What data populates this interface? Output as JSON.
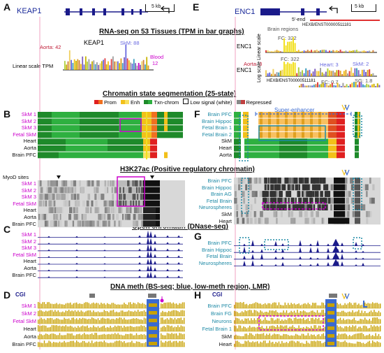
{
  "panels": {
    "a": "A",
    "b": "B",
    "c": "C",
    "d": "D",
    "e": "E",
    "f": "F",
    "g": "G",
    "h": "H"
  },
  "genes": {
    "left": "KEAP1",
    "right": "ENC1"
  },
  "scalebar": "5 kb",
  "titles": {
    "rnaseq": "RNA-seq on 53 Tissues (TPM in bar graphs)",
    "chromatin": "Chromatin state segmentation (25-state)",
    "h3k27ac": "H3K27ac (Positive regulatory chromatin)",
    "dnase": "Open chromatin (DNase-seq)",
    "dnameth": "DNA meth (BS-seq; blue, low-meth region, LMR)"
  },
  "legend": {
    "prom": "Prom",
    "enh": "Enh",
    "txn": "Txn-chrom",
    "low": "Low signal (white)",
    "rep": "Repressed"
  },
  "rna_left": {
    "gene": "KEAP1",
    "aorta": "Aorta: 42",
    "skm": "SkM: 88",
    "blood": "Blood",
    "blood_val": "12",
    "ylabel": "Linear scale TPM"
  },
  "rna_right": {
    "five_end": "5'-end",
    "transcript": "HEXB/ENST00000511181",
    "brain_regions": "Brain regions",
    "fc1": "FC: 322",
    "linear": "Linear scale",
    "log": "Log scale",
    "gene": "ENC1",
    "aorta": "Aorta: 3",
    "fc2": "FC: 322",
    "heart": "Heart: 3",
    "skm": "SkM: 2",
    "transcript2": "HEXB/ENST00000511181",
    "fc3": "FC: 0.7",
    "sg": "SG: 1.8"
  },
  "superenhancer": "Super-enhancer",
  "myod": "MyoD sites",
  "cgi": "CGI",
  "tracks": {
    "b": [
      "SkM 1",
      "SkM 2",
      "SkM 3",
      "Fetal SkM",
      "Heart",
      "Aorta",
      "Brain PFC"
    ],
    "f": [
      "Brain PFC",
      "Brain Hippoc",
      "Fetal Brain 1",
      "Fetal Brain 2",
      "SkM",
      "Heart",
      "Aorta"
    ],
    "bh": [
      "SkM 1",
      "SkM 2",
      "SkM 3",
      "Fetal SkM",
      "Heart",
      "Aorta",
      "Brain PFC"
    ],
    "fh": [
      "Brain PFC",
      "Brain Hippoc",
      "Brain AG",
      "Fetal Brain",
      "Neurospheres",
      "SkM",
      "Heart"
    ],
    "c": [
      "SkM 1",
      "SkM 2",
      "SkM 3",
      "Fetal SkM",
      "Heart",
      "Aorta",
      "Brain PFC"
    ],
    "g": [
      "Brain PFC",
      "Brain Hippoc",
      "Fetal Brain",
      "Neurospheres"
    ],
    "d": [
      "SkM 1",
      "SkM 2",
      "Fetal SkM",
      "Heart",
      "Aorta",
      "Brain PFC"
    ],
    "h": [
      "Brain PFC",
      "Brain FG",
      "Neurons",
      "Fetal Brain 1",
      "SkM",
      "Heart"
    ]
  },
  "colors": {
    "prom": "#e02020",
    "enh": "#f2c01a",
    "txn": "#1e8a2a",
    "rep": "#d05050",
    "dnase": "#1a1a8a",
    "meth": "#c8a100",
    "lmr": "#3a6ad0",
    "magenta": "#cc00cc",
    "teal": "#1f8aa6"
  }
}
